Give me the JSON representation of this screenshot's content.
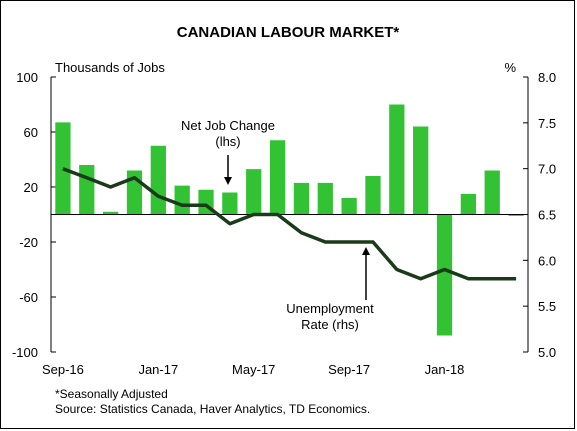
{
  "chart_data": {
    "type": "bar+line",
    "title": "CANADIAN LABOUR MARKET*",
    "left_axis": {
      "label": "Thousands of Jobs",
      "range": [
        -100,
        100
      ],
      "ticks": [
        100,
        60,
        20,
        -20,
        -60,
        -100
      ],
      "tick_labels": [
        "100",
        "60",
        "20",
        "-20",
        "-60",
        "-100"
      ]
    },
    "right_axis": {
      "label": "%",
      "range": [
        5.0,
        8.0
      ],
      "ticks": [
        8.0,
        7.5,
        7.0,
        6.5,
        6.0,
        5.5,
        5.0
      ],
      "tick_labels": [
        "8.0",
        "7.5",
        "7.0",
        "6.5",
        "6.0",
        "5.5",
        "5.0"
      ]
    },
    "x_tick_labels": [
      {
        "index": 0,
        "label": "Sep-16"
      },
      {
        "index": 4,
        "label": "Jan-17"
      },
      {
        "index": 8,
        "label": "May-17"
      },
      {
        "index": 12,
        "label": "Sep-17"
      },
      {
        "index": 16,
        "label": "Jan-18"
      }
    ],
    "categories": [
      "Sep-16",
      "Oct-16",
      "Nov-16",
      "Dec-16",
      "Jan-17",
      "Feb-17",
      "Mar-17",
      "Apr-17",
      "May-17",
      "Jun-17",
      "Jul-17",
      "Aug-17",
      "Sep-17",
      "Oct-17",
      "Nov-17",
      "Dec-17",
      "Jan-18",
      "Feb-18",
      "Mar-18",
      "Apr-18"
    ],
    "series": [
      {
        "name": "Net Job Change (lhs)",
        "type": "bar",
        "axis": "left",
        "color": "#33c233",
        "values": [
          67,
          36,
          2,
          32,
          50,
          21,
          18,
          16,
          33,
          54,
          23,
          23,
          12,
          28,
          80,
          64,
          -88,
          15,
          32,
          -1
        ]
      },
      {
        "name": "Unemployment Rate (rhs)",
        "type": "line",
        "axis": "right",
        "color": "#1a3a1a",
        "values": [
          7.0,
          6.9,
          6.8,
          6.9,
          6.7,
          6.6,
          6.6,
          6.4,
          6.5,
          6.5,
          6.3,
          6.2,
          6.2,
          6.2,
          5.9,
          5.8,
          5.9,
          5.8,
          5.8,
          5.8
        ]
      }
    ],
    "annotations": [
      {
        "lines": [
          "Net Job Change",
          "(lhs)"
        ],
        "points_to": "Apr-17"
      },
      {
        "lines": [
          "Unemployment",
          "Rate (rhs)"
        ],
        "points_to": "Oct-17"
      }
    ],
    "footnotes": [
      "*Seasonally Adjusted",
      "Source: Statistics Canada, Haver Analytics, TD Economics."
    ]
  }
}
